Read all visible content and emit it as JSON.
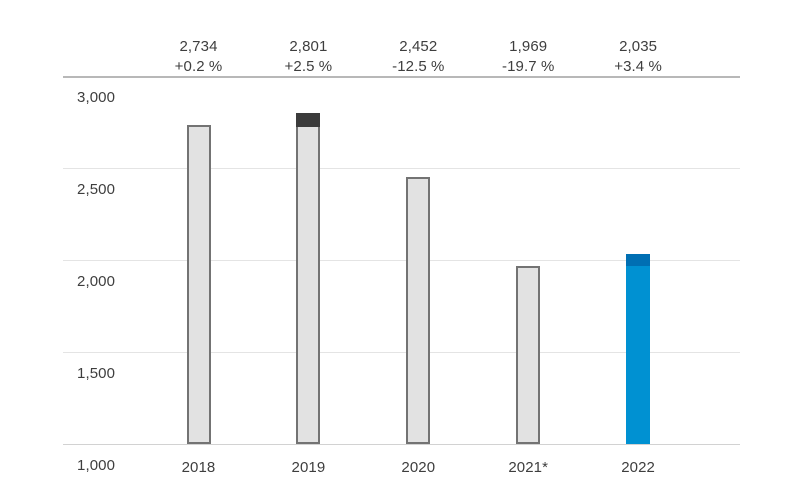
{
  "chart": {
    "background": "#ffffff",
    "text_color": "#3e3e3e"
  },
  "chart_data": {
    "type": "bar",
    "title": "",
    "categories": [
      "2018",
      "2019",
      "2020",
      "2021*",
      "2022"
    ],
    "values": [
      2734,
      2801,
      2452,
      1969,
      2035
    ],
    "value_labels": [
      "2,734",
      "2,801",
      "2,452",
      "1,969",
      "2,035"
    ],
    "change_labels": [
      "+0.2 %",
      "+2.5 %",
      "-12.5 %",
      "-19.7 %",
      "+3.4 %"
    ],
    "highlight_from": [
      null,
      2734,
      null,
      null,
      1969
    ],
    "accent_bar_index": 4,
    "ylim": [
      1000,
      3000
    ],
    "yticks": [
      1000,
      1500,
      2000,
      2500,
      3000
    ],
    "ytick_labels": [
      "1,000",
      "1,500",
      "2,000",
      "2,500",
      "3,000"
    ],
    "xlabel": "",
    "ylabel": "",
    "grid": true,
    "legend": "none",
    "colors": {
      "bar_fill": "#e2e2e2",
      "bar_border": "#737373",
      "bar_highlight_cap": "#3b3b3b",
      "accent_bar_fill": "#0091d2",
      "accent_bar_cap": "#006fb3",
      "gridline": "#e4e4e4",
      "axis_top_rule": "#b8b8b8",
      "axis_baseline": "#d2d2d2"
    }
  }
}
